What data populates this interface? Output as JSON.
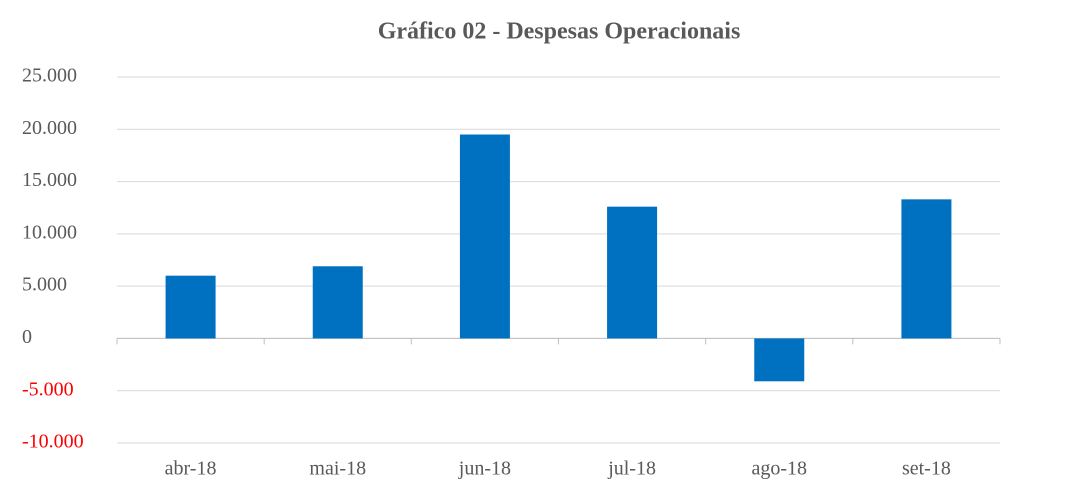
{
  "chart_data": {
    "type": "bar",
    "title": "Gráfico 02 - Despesas Operacionais",
    "categories": [
      "abr-18",
      "mai-18",
      "jun-18",
      "jul-18",
      "ago-18",
      "set-18"
    ],
    "values": [
      6000,
      6900,
      19500,
      12600,
      -4100,
      13300
    ],
    "color": "#0070c0",
    "ylim": [
      -10000,
      25000
    ],
    "yticks": [
      {
        "value": -10000,
        "label": "-10.000"
      },
      {
        "value": -5000,
        "label": "-5.000"
      },
      0,
      {
        "value": 5000,
        "label": "5.000"
      },
      {
        "value": 10000,
        "label": "10.000"
      },
      {
        "value": 15000,
        "label": "15.000"
      },
      {
        "value": 20000,
        "label": "20.000"
      },
      {
        "value": 25000,
        "label": "25.000"
      }
    ],
    "negative_tick_color": "#ff0000",
    "grid": true
  }
}
